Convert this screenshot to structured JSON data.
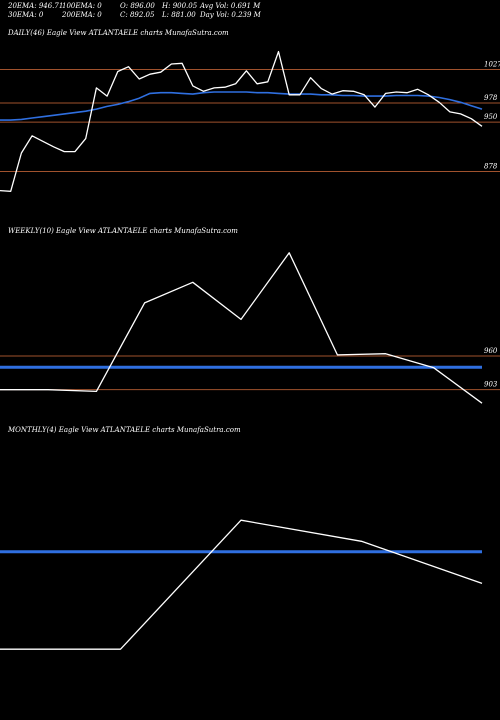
{
  "header": {
    "ema20": "20EMA: 946.71",
    "ema100": "100EMA: 0",
    "open": "O: 896.00",
    "high": "H: 900.05",
    "avg_vol": "Avg Vol: 0.691 M",
    "ema30": "30EMA: 0",
    "ema200": "200EMA: 0",
    "close": "C: 892.05",
    "low": "L: 881.00",
    "day_vol": "Day Vol: 0.239 M"
  },
  "colors": {
    "background": "#000000",
    "price_line": "#ffffff",
    "ema_line": "#2f6fe0",
    "level_line": "#a0522d"
  },
  "chart_data": [
    {
      "type": "line",
      "title": "DAILY(46) Eagle  View  ATLANTAELE charts MunafaSutra.com",
      "ylim": [
        810,
        1070
      ],
      "levels": [
        1027,
        978,
        950,
        878
      ],
      "level_labels": [
        "1027",
        "978",
        "950",
        "878"
      ],
      "series": [
        {
          "values": [
            850,
            849,
            905,
            930,
            922,
            914,
            907,
            907,
            926,
            1000,
            988,
            1024,
            1031,
            1013,
            1020,
            1023,
            1035,
            1036,
            1003,
            995,
            1000,
            1001,
            1006,
            1025,
            1006,
            1009,
            1053,
            990,
            990,
            1015,
            999,
            991,
            996,
            995,
            990,
            972,
            992,
            994,
            993,
            998,
            990,
            979,
            965,
            962,
            955,
            944
          ]
        },
        {
          "values": [
            953,
            953,
            954,
            956,
            958,
            960,
            962,
            964,
            966,
            969,
            973,
            976,
            980,
            985,
            992,
            993,
            993,
            992,
            991,
            993,
            994,
            994,
            994,
            994,
            993,
            993,
            992,
            991,
            991,
            991,
            990,
            990,
            989,
            989,
            988,
            988,
            988,
            989,
            989,
            989,
            988,
            986,
            983,
            979,
            974,
            969
          ]
        }
      ]
    },
    {
      "type": "line",
      "title": "WEEKLY(10) Eagle  View  ATLANTAELE charts MunafaSutra.com",
      "ylim": [
        855,
        1160
      ],
      "levels": [
        960,
        903
      ],
      "level_labels": [
        "960",
        "903"
      ],
      "series": [
        {
          "values": [
            903,
            903,
            900,
            1050,
            1085,
            1022,
            1135,
            962,
            964,
            940,
            880
          ]
        },
        {
          "values": [
            941,
            941,
            941,
            941,
            941,
            941,
            941,
            941,
            941,
            941,
            941
          ]
        }
      ]
    },
    {
      "type": "line",
      "title": "MONTHLY(4) Eagle  View  ATLANTAELE charts MunafaSutra.com",
      "ylim": [
        620,
        1150
      ],
      "levels": [],
      "level_labels": [],
      "series": [
        {
          "values": [
            745,
            745,
            990,
            950,
            870
          ]
        },
        {
          "values": [
            930,
            930,
            930,
            930,
            930
          ]
        }
      ]
    }
  ]
}
